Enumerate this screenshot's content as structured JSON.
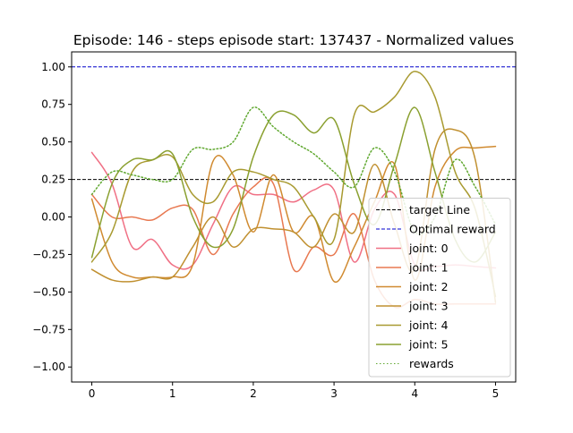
{
  "chart_data": {
    "type": "line",
    "title": "Episode: 146 - steps episode start: 137437 - Normalized values",
    "xlabel": "",
    "ylabel": "",
    "xlim": [
      -0.25,
      5.25
    ],
    "ylim": [
      -1.1,
      1.1
    ],
    "x_ticks": [
      0,
      1,
      2,
      3,
      4,
      5
    ],
    "x_tick_labels": [
      "0",
      "1",
      "2",
      "3",
      "4",
      "5"
    ],
    "y_ticks": [
      -1.0,
      -0.75,
      -0.5,
      -0.25,
      0.0,
      0.25,
      0.5,
      0.75,
      1.0
    ],
    "y_tick_labels": [
      "−1.00",
      "−0.75",
      "−0.50",
      "−0.25",
      "0.00",
      "0.25",
      "0.50",
      "0.75",
      "1.00"
    ],
    "grid": false,
    "legend_position": "lower-right",
    "hlines": [
      {
        "name": "target Line",
        "y": 0.25,
        "color": "#000000",
        "dash": "dashed"
      },
      {
        "name": "Optimal reward",
        "y": 1.0,
        "color": "#0000cc",
        "dash": "dashed"
      }
    ],
    "x": [
      0,
      0.25,
      0.5,
      0.75,
      1,
      1.25,
      1.5,
      1.75,
      2,
      2.25,
      2.5,
      2.75,
      3,
      3.25,
      3.5,
      3.75,
      4,
      4.25,
      4.5,
      4.75,
      5
    ],
    "series": [
      {
        "name": "joint: 0",
        "color": "#f07085",
        "dash": "solid",
        "values": [
          0.43,
          0.22,
          -0.2,
          -0.15,
          -0.32,
          -0.32,
          -0.05,
          0.2,
          0.15,
          0.15,
          0.1,
          0.18,
          0.18,
          -0.3,
          0.05,
          0.15,
          -0.32,
          -0.33,
          -0.32,
          -0.33,
          -0.34
        ]
      },
      {
        "name": "joint: 1",
        "color": "#e87850",
        "dash": "solid",
        "values": [
          0.15,
          0.0,
          0.0,
          -0.02,
          0.06,
          0.05,
          -0.25,
          0.02,
          0.2,
          0.22,
          -0.35,
          -0.2,
          -0.25,
          0.02,
          -0.42,
          -0.6,
          -0.55,
          -0.58,
          -0.58,
          -0.58,
          -0.58
        ]
      },
      {
        "name": "joint: 2",
        "color": "#d08a30",
        "dash": "solid",
        "values": [
          0.12,
          -0.3,
          -0.4,
          -0.4,
          -0.4,
          -0.32,
          0.37,
          0.28,
          -0.1,
          0.28,
          -0.1,
          0.0,
          -0.43,
          -0.2,
          0.1,
          0.35,
          -0.42,
          0.2,
          0.44,
          0.46,
          0.47
        ]
      },
      {
        "name": "joint: 3",
        "color": "#c09030",
        "dash": "solid",
        "values": [
          -0.35,
          -0.42,
          -0.43,
          -0.4,
          -0.4,
          -0.2,
          0.0,
          -0.2,
          -0.08,
          -0.08,
          -0.1,
          -0.2,
          0.02,
          -0.1,
          0.35,
          -0.05,
          -0.35,
          0.45,
          0.58,
          0.38,
          -0.57
        ]
      },
      {
        "name": "joint: 4",
        "color": "#a89a30",
        "dash": "solid",
        "values": [
          -0.3,
          -0.1,
          0.3,
          0.38,
          0.4,
          0.15,
          0.1,
          0.3,
          0.3,
          0.25,
          0.2,
          0.0,
          -0.15,
          0.68,
          0.7,
          0.8,
          0.97,
          0.8,
          0.3,
          0.05,
          -0.53
        ]
      },
      {
        "name": "joint: 5",
        "color": "#8aa030",
        "dash": "solid",
        "values": [
          -0.27,
          0.22,
          0.38,
          0.38,
          0.42,
          0.0,
          -0.2,
          -0.08,
          0.4,
          0.68,
          0.68,
          0.56,
          0.65,
          0.22,
          -0.05,
          0.35,
          0.73,
          0.3,
          -0.15,
          -0.3,
          -0.1
        ]
      },
      {
        "name": "rewards",
        "color": "#60a830",
        "dash": "dotted",
        "values": [
          0.15,
          0.3,
          0.28,
          0.25,
          0.25,
          0.45,
          0.45,
          0.5,
          0.73,
          0.6,
          0.5,
          0.42,
          0.3,
          0.2,
          0.46,
          0.3,
          -0.1,
          0.0,
          0.38,
          0.2,
          -0.05
        ]
      }
    ]
  }
}
